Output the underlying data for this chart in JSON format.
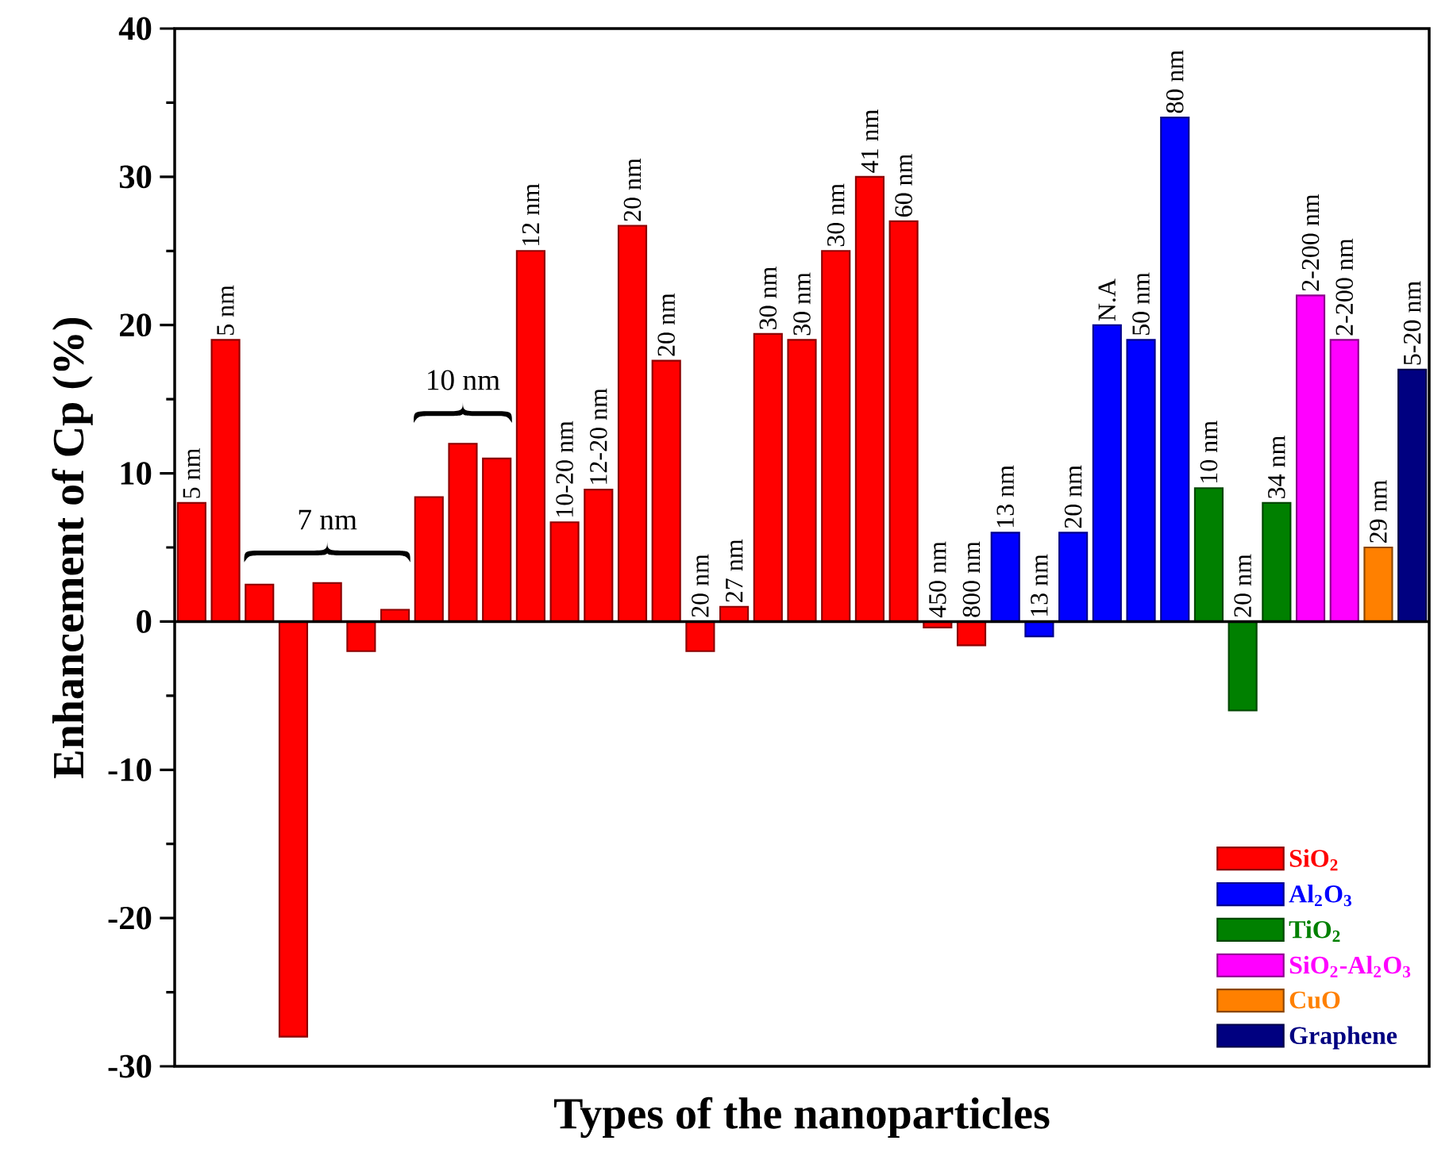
{
  "chart_data": {
    "type": "bar",
    "xlabel": "Types of the nanoparticles",
    "ylabel": "Enhancement of Cp (%)",
    "categories": [
      "5 nm",
      "5 nm",
      null,
      null,
      null,
      null,
      null,
      null,
      null,
      null,
      "12 nm",
      "10-20 nm",
      "12-20 nm",
      "20 nm",
      "20 nm",
      "20 nm",
      "27 nm",
      "30 nm",
      "30 nm",
      "30 nm",
      "41 nm",
      "60 nm",
      "450 nm",
      "800 nm",
      "13 nm",
      "13 nm",
      "20 nm",
      "N.A",
      "50 nm",
      "80 nm",
      "10 nm",
      "20 nm",
      "34 nm",
      "2-200 nm",
      "2-200 nm",
      "29 nm",
      "5-20 nm"
    ],
    "series": [
      {
        "name": "SiO$_{2}$",
        "color": "#ff0000",
        "values": [
          8,
          19,
          2.5,
          -28,
          2.6,
          -2,
          0.8,
          8.4,
          12,
          11,
          25,
          6.7,
          8.9,
          26.7,
          17.6,
          -2,
          1,
          19.4,
          19,
          25,
          30,
          27,
          -0.4,
          -1.6,
          null,
          null,
          null,
          null,
          null,
          null,
          null,
          null,
          null,
          null,
          null,
          null,
          null
        ]
      },
      {
        "name": "Al$_{2}$O$_{3}$",
        "color": "#0000ff",
        "values": [
          null,
          null,
          null,
          null,
          null,
          null,
          null,
          null,
          null,
          null,
          null,
          null,
          null,
          null,
          null,
          null,
          null,
          null,
          null,
          null,
          null,
          null,
          null,
          null,
          6,
          -1,
          6,
          20,
          19,
          34,
          null,
          null,
          null,
          null,
          null,
          null,
          null
        ]
      },
      {
        "name": "TiO$_{2}$",
        "color": "#008000",
        "values": [
          null,
          null,
          null,
          null,
          null,
          null,
          null,
          null,
          null,
          null,
          null,
          null,
          null,
          null,
          null,
          null,
          null,
          null,
          null,
          null,
          null,
          null,
          null,
          null,
          null,
          null,
          null,
          null,
          null,
          null,
          9,
          -6,
          8,
          null,
          null,
          null,
          null
        ]
      },
      {
        "name": "SiO$_{2}$-Al$_{2}$O$_{3}$",
        "color": "#ff00ff",
        "values": [
          null,
          null,
          null,
          null,
          null,
          null,
          null,
          null,
          null,
          null,
          null,
          null,
          null,
          null,
          null,
          null,
          null,
          null,
          null,
          null,
          null,
          null,
          null,
          null,
          null,
          null,
          null,
          null,
          null,
          null,
          null,
          null,
          null,
          22,
          19,
          null,
          null
        ]
      },
      {
        "name": "CuO",
        "color": "#ff8000",
        "values": [
          null,
          null,
          null,
          null,
          null,
          null,
          null,
          null,
          null,
          null,
          null,
          null,
          null,
          null,
          null,
          null,
          null,
          null,
          null,
          null,
          null,
          null,
          null,
          null,
          null,
          null,
          null,
          null,
          null,
          null,
          null,
          null,
          null,
          null,
          null,
          5,
          null
        ]
      },
      {
        "name": "Graphene",
        "color": "#000080",
        "values": [
          null,
          null,
          null,
          null,
          null,
          null,
          null,
          null,
          null,
          null,
          null,
          null,
          null,
          null,
          null,
          null,
          null,
          null,
          null,
          null,
          null,
          null,
          null,
          null,
          null,
          null,
          null,
          null,
          null,
          null,
          null,
          null,
          null,
          null,
          null,
          null,
          17
        ]
      }
    ],
    "annotations": [
      "7 nm",
      "10 nm"
    ],
    "ylim": [
      -30,
      40
    ],
    "yticks": [
      -30,
      -20,
      -10,
      0,
      10,
      20,
      30,
      40
    ],
    "legend": "bottom right"
  }
}
